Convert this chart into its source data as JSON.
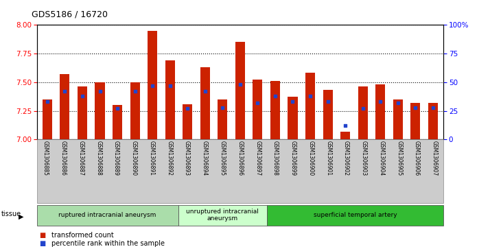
{
  "title": "GDS5186 / 16720",
  "samples": [
    "GSM1306885",
    "GSM1306886",
    "GSM1306887",
    "GSM1306888",
    "GSM1306889",
    "GSM1306890",
    "GSM1306891",
    "GSM1306892",
    "GSM1306893",
    "GSM1306894",
    "GSM1306895",
    "GSM1306896",
    "GSM1306897",
    "GSM1306898",
    "GSM1306899",
    "GSM1306900",
    "GSM1306901",
    "GSM1306902",
    "GSM1306903",
    "GSM1306904",
    "GSM1306905",
    "GSM1306906",
    "GSM1306907"
  ],
  "transformed_count": [
    7.35,
    7.57,
    7.46,
    7.5,
    7.3,
    7.5,
    7.95,
    7.69,
    7.31,
    7.63,
    7.35,
    7.85,
    7.52,
    7.51,
    7.37,
    7.58,
    7.43,
    7.07,
    7.46,
    7.48,
    7.35,
    7.32,
    7.32
  ],
  "percentile_rank": [
    33,
    42,
    38,
    42,
    27,
    42,
    47,
    47,
    27,
    42,
    28,
    48,
    32,
    38,
    33,
    38,
    33,
    12,
    27,
    33,
    32,
    28,
    28
  ],
  "groups": [
    {
      "label": "ruptured intracranial aneurysm",
      "start": 0,
      "end": 8,
      "color": "#aaddaa"
    },
    {
      "label": "unruptured intracranial\naneurysm",
      "start": 8,
      "end": 13,
      "color": "#ccffcc"
    },
    {
      "label": "superficial temporal artery",
      "start": 13,
      "end": 23,
      "color": "#33bb33"
    }
  ],
  "ylim_left": [
    7.0,
    8.0
  ],
  "ylim_right": [
    0,
    100
  ],
  "yticks_left": [
    7.0,
    7.25,
    7.5,
    7.75,
    8.0
  ],
  "yticks_right": [
    0,
    25,
    50,
    75,
    100
  ],
  "ytick_labels_right": [
    "0",
    "25",
    "50",
    "75",
    "100%"
  ],
  "bar_color": "#cc2200",
  "dot_color": "#2244cc",
  "bar_width": 0.55,
  "plot_bg": "#ffffff",
  "fig_bg": "#ffffff",
  "xtick_area_bg": "#cccccc",
  "grid_color": "#000000",
  "tissue_label": "tissue",
  "legend_items": [
    {
      "color": "#cc2200",
      "label": "transformed count"
    },
    {
      "color": "#2244cc",
      "label": "percentile rank within the sample"
    }
  ]
}
